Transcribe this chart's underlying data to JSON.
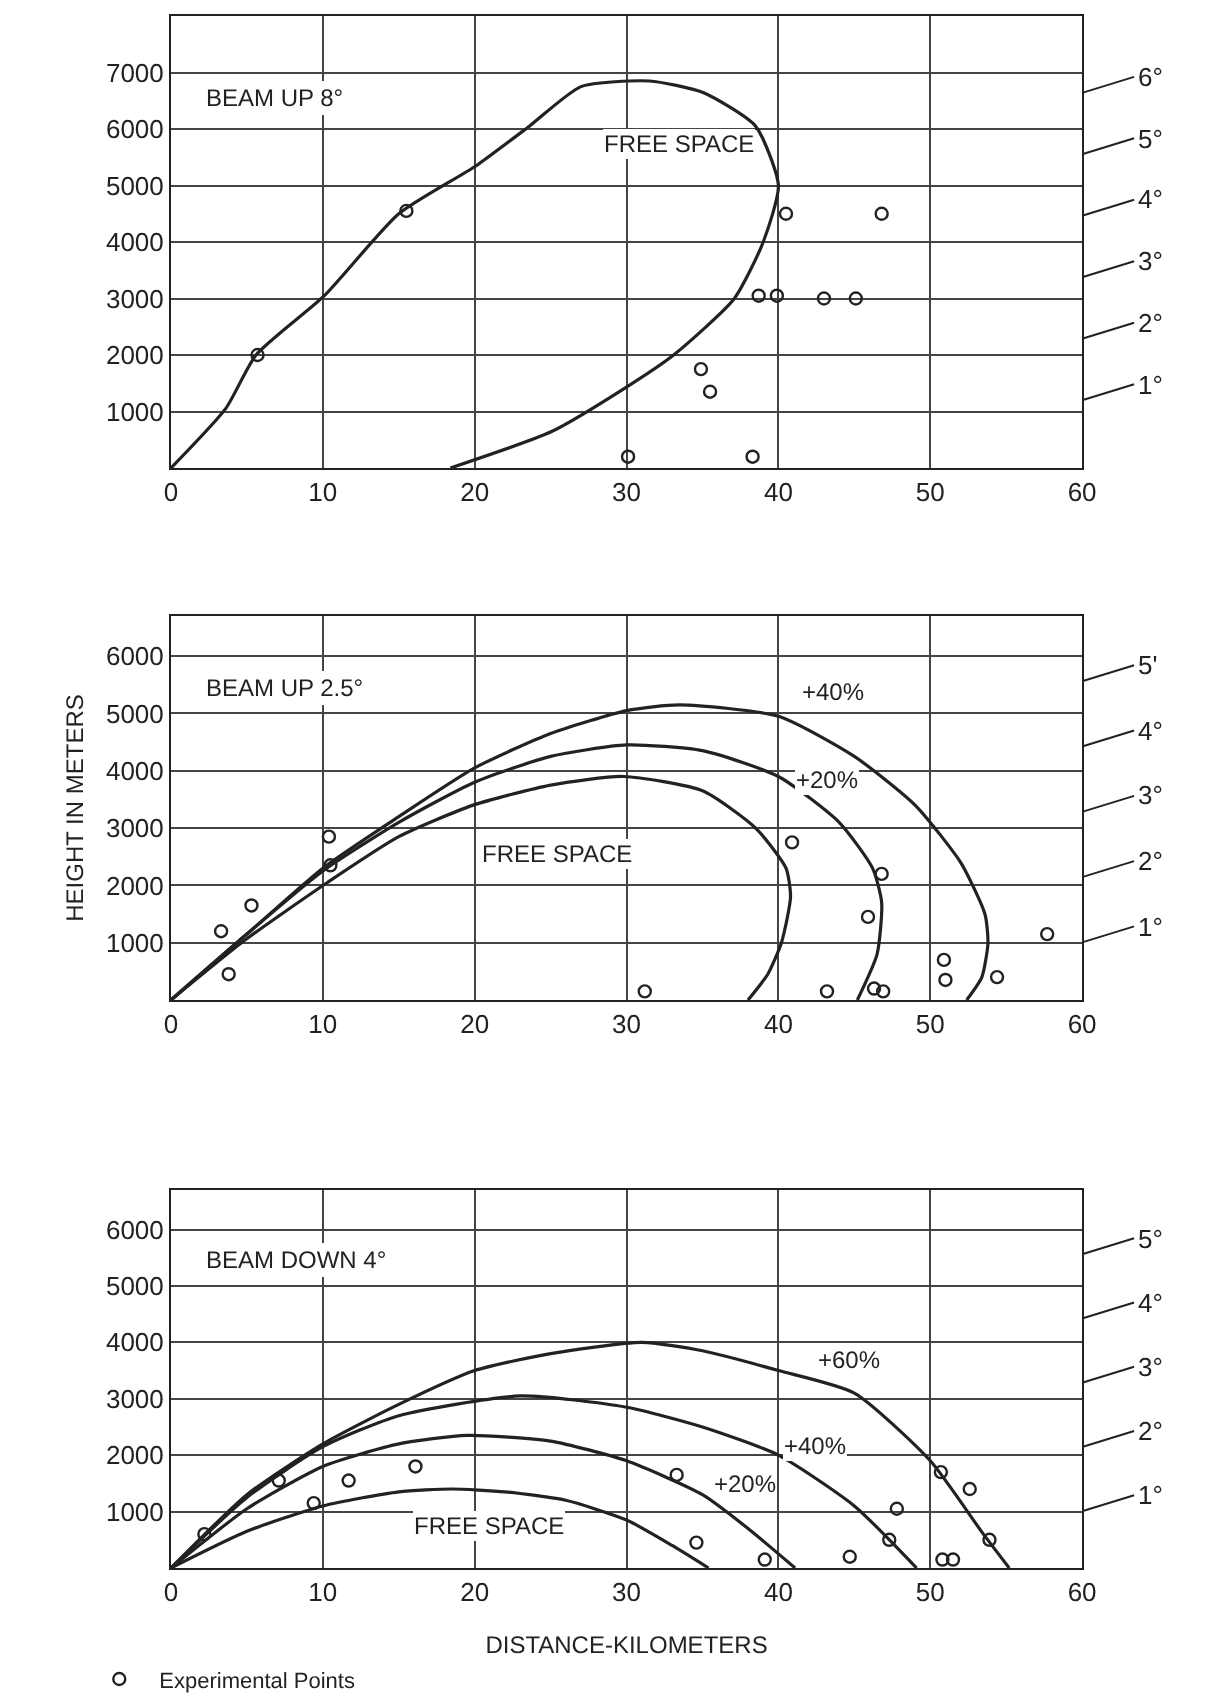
{
  "chart_data": [
    {
      "type": "line",
      "xlim": [
        0,
        60
      ],
      "ylim": [
        0,
        8000
      ],
      "xticks": [
        0,
        10,
        20,
        30,
        40,
        50,
        60
      ],
      "yticks": [
        1000,
        2000,
        3000,
        4000,
        5000,
        6000,
        7000
      ],
      "grid": true,
      "line_style": "solid",
      "annotations": [
        "BEAM UP 8°",
        "6°",
        "5°",
        "4°",
        "3°",
        "2°",
        "1°"
      ],
      "series": [
        {
          "name": "FREE SPACE",
          "color": "#222222",
          "marker": "none",
          "x": [
            0,
            3.6,
            5.6,
            10.1,
            15,
            20.1,
            23.6,
            27,
            31.5,
            35,
            38.5,
            40,
            39,
            37.1,
            33.1,
            30.1,
            25.1,
            18.4
          ],
          "values": [
            0,
            1050,
            2000,
            3050,
            4500,
            5350,
            6050,
            6750,
            6850,
            6650,
            6050,
            5000,
            4000,
            3000,
            2000,
            1450,
            650,
            0
          ]
        },
        {
          "type": "scatter",
          "color": "#222222",
          "marker": "circle",
          "x": [
            5.7,
            15.5,
            40.5,
            46.8,
            38.7,
            39.9,
            43,
            45.1,
            34.9,
            35.5,
            30.1,
            38.3
          ],
          "values": [
            2000,
            4550,
            4500,
            4500,
            3050,
            3050,
            3000,
            3000,
            1750,
            1350,
            200,
            200
          ]
        }
      ]
    },
    {
      "type": "line",
      "xlim": [
        0,
        60
      ],
      "ylim": [
        0,
        6700
      ],
      "xticks": [
        0,
        10,
        20,
        30,
        40,
        50,
        60
      ],
      "yticks": [
        1000,
        2000,
        3000,
        4000,
        5000,
        6000
      ],
      "grid": true,
      "line_style": "solid",
      "ylabel": "HEIGHT IN METERS",
      "annotations": [
        "BEAM UP 2.5°",
        "5'",
        "4°",
        "3°",
        "2°",
        "1°"
      ],
      "series": [
        {
          "name": "FREE SPACE",
          "color": "#222222",
          "marker": "none",
          "x": [
            0,
            4.9,
            10.3,
            15,
            19.9,
            25,
            29.8,
            35,
            38.5,
            40.5,
            40.8,
            40.2,
            39.3,
            38
          ],
          "values": [
            0,
            1050,
            2050,
            2850,
            3400,
            3750,
            3900,
            3650,
            3000,
            2300,
            1800,
            1000,
            450,
            0
          ]
        },
        {
          "name": "+20%",
          "color": "#222222",
          "marker": "none",
          "x": [
            0,
            5,
            10,
            15,
            20,
            25,
            30,
            35,
            40,
            44,
            46.2,
            46.8,
            46.5,
            45.2
          ],
          "values": [
            0,
            1150,
            2250,
            3100,
            3800,
            4250,
            4450,
            4350,
            3900,
            3100,
            2300,
            1700,
            800,
            0
          ]
        },
        {
          "name": "+40%",
          "color": "#222222",
          "marker": "none",
          "x": [
            0,
            5,
            10,
            15,
            20,
            25,
            30,
            33.5,
            40,
            45,
            49,
            52,
            53.6,
            53.8,
            53.4,
            52.4
          ],
          "values": [
            0,
            1150,
            2300,
            3200,
            4050,
            4650,
            5050,
            5150,
            4950,
            4250,
            3400,
            2400,
            1500,
            1000,
            400,
            0
          ]
        },
        {
          "type": "scatter",
          "color": "#222222",
          "marker": "circle",
          "x": [
            3.3,
            3.8,
            5.3,
            10.4,
            10.5,
            31.2,
            40.9,
            43.2,
            45.9,
            46.8,
            46.3,
            46.9,
            50.9,
            51,
            54.4,
            57.7
          ],
          "values": [
            1200,
            450,
            1650,
            2850,
            2350,
            150,
            2750,
            150,
            1450,
            2200,
            200,
            150,
            700,
            350,
            400,
            1150
          ]
        }
      ]
    },
    {
      "type": "line",
      "xlim": [
        0,
        60
      ],
      "ylim": [
        0,
        6700
      ],
      "xticks": [
        0,
        10,
        20,
        30,
        40,
        50,
        60
      ],
      "yticks": [
        1000,
        2000,
        3000,
        4000,
        5000,
        6000
      ],
      "grid": true,
      "line_style": "solid",
      "xlabel": "DISTANCE-KILOMETERS",
      "legend": "bottom left",
      "annotations": [
        "BEAM DOWN 4°",
        "5°",
        "4°",
        "3°",
        "2°",
        "1°"
      ],
      "series": [
        {
          "name": "FREE SPACE",
          "color": "#222222",
          "marker": "none",
          "x": [
            0,
            5,
            10,
            15,
            18.5,
            22,
            26,
            30,
            33,
            35.4
          ],
          "values": [
            0,
            650,
            1100,
            1350,
            1400,
            1350,
            1200,
            850,
            400,
            0
          ]
        },
        {
          "name": "+20%",
          "color": "#222222",
          "marker": "none",
          "x": [
            0,
            5,
            10,
            15,
            19.5,
            25,
            30,
            35,
            38,
            41.1
          ],
          "values": [
            0,
            1050,
            1800,
            2200,
            2350,
            2250,
            1900,
            1300,
            700,
            0
          ]
        },
        {
          "name": "+40%",
          "color": "#222222",
          "marker": "none",
          "x": [
            0,
            5,
            10,
            15,
            23,
            30,
            35,
            40,
            45,
            49.1
          ],
          "values": [
            0,
            1250,
            2150,
            2700,
            3050,
            2850,
            2500,
            2000,
            1100,
            0
          ]
        },
        {
          "name": "+60%",
          "color": "#222222",
          "marker": "none",
          "x": [
            0,
            5,
            10,
            15,
            20,
            25,
            31,
            35,
            40,
            45,
            50,
            53.5,
            55.2
          ],
          "values": [
            0,
            1300,
            2200,
            2900,
            3500,
            3800,
            4000,
            3850,
            3500,
            3100,
            1900,
            600,
            0
          ]
        },
        {
          "type": "scatter",
          "name": "Experimental Points",
          "color": "#222222",
          "marker": "circle",
          "x": [
            2.2,
            7.1,
            9.4,
            11.7,
            16.1,
            33.3,
            34.6,
            39.1,
            44.7,
            47.3,
            47.8,
            50.7,
            50.8,
            51.5,
            52.6,
            53.9
          ],
          "values": [
            600,
            1550,
            1150,
            1550,
            1800,
            1650,
            450,
            150,
            200,
            500,
            1050,
            1700,
            150,
            150,
            1400,
            500
          ]
        }
      ]
    }
  ]
}
